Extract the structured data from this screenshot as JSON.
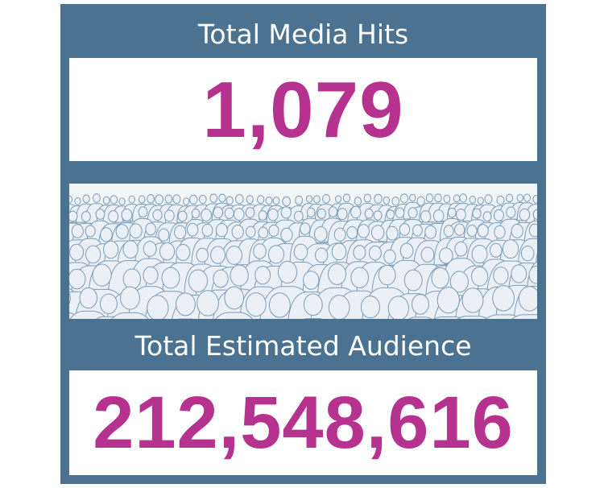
{
  "header": {
    "title": "Total Media Hits",
    "value": "1,079"
  },
  "footer": {
    "title": "Total Estimated Audience",
    "value": "212,548,616"
  }
}
